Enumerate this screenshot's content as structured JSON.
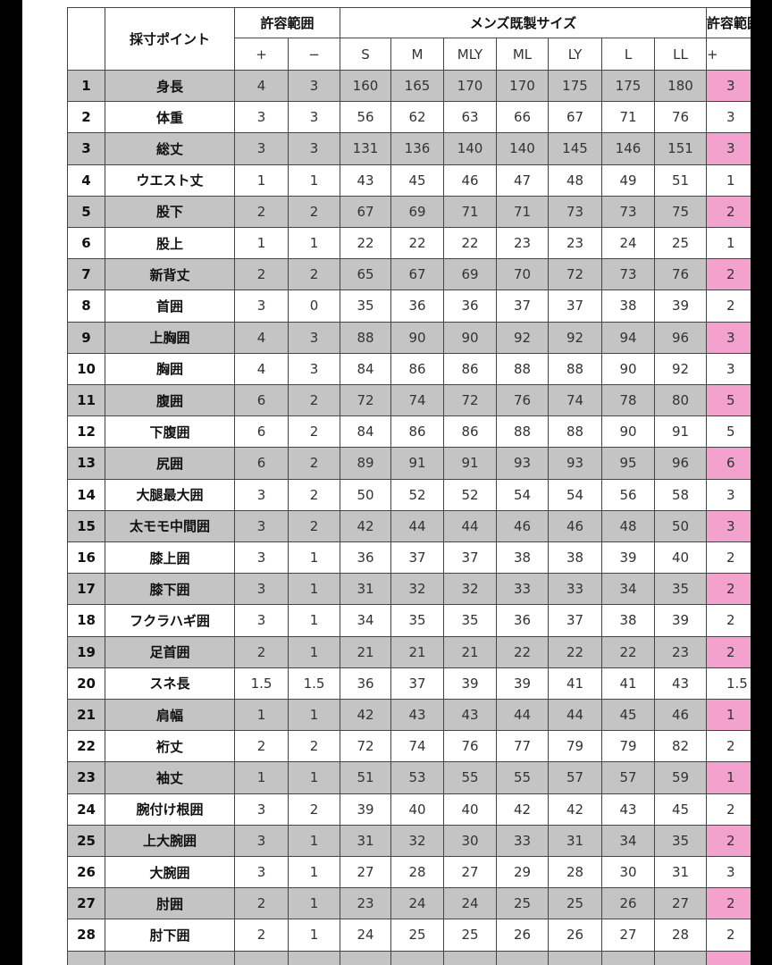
{
  "header": {
    "point": "採寸ポイント",
    "tolerance": "許容範囲",
    "sizes_title": "メンズ既製サイズ",
    "plus": "+",
    "minus": "−",
    "sizes": [
      "S",
      "M",
      "MLY",
      "ML",
      "LY",
      "L",
      "LL"
    ],
    "tolerance2": "許容範囲",
    "plus2": "+"
  },
  "rows": [
    {
      "no": 1,
      "name": "身長",
      "plus": 4,
      "minus": 3,
      "sizes": [
        160,
        165,
        170,
        170,
        175,
        175,
        180
      ],
      "plus2": 3
    },
    {
      "no": 2,
      "name": "体重",
      "plus": 3,
      "minus": 3,
      "sizes": [
        56,
        62,
        63,
        66,
        67,
        71,
        76
      ],
      "plus2": 3
    },
    {
      "no": 3,
      "name": "総丈",
      "plus": 3,
      "minus": 3,
      "sizes": [
        131,
        136,
        140,
        140,
        145,
        146,
        151
      ],
      "plus2": 3
    },
    {
      "no": 4,
      "name": "ウエスト丈",
      "plus": 1,
      "minus": 1,
      "sizes": [
        43,
        45,
        46,
        47,
        48,
        49,
        51
      ],
      "plus2": 1
    },
    {
      "no": 5,
      "name": "股下",
      "plus": 2,
      "minus": 2,
      "sizes": [
        67,
        69,
        71,
        71,
        73,
        73,
        75
      ],
      "plus2": 2
    },
    {
      "no": 6,
      "name": "股上",
      "plus": 1,
      "minus": 1,
      "sizes": [
        22,
        22,
        22,
        23,
        23,
        24,
        25
      ],
      "plus2": 1
    },
    {
      "no": 7,
      "name": "新背丈",
      "plus": 2,
      "minus": 2,
      "sizes": [
        65,
        67,
        69,
        70,
        72,
        73,
        76
      ],
      "plus2": 2
    },
    {
      "no": 8,
      "name": "首囲",
      "plus": 3,
      "minus": 0,
      "sizes": [
        35,
        36,
        36,
        37,
        37,
        38,
        39
      ],
      "plus2": 2
    },
    {
      "no": 9,
      "name": "上胸囲",
      "plus": 4,
      "minus": 3,
      "sizes": [
        88,
        90,
        90,
        92,
        92,
        94,
        96
      ],
      "plus2": 3
    },
    {
      "no": 10,
      "name": "胸囲",
      "plus": 4,
      "minus": 3,
      "sizes": [
        84,
        86,
        86,
        88,
        88,
        90,
        92
      ],
      "plus2": 3
    },
    {
      "no": 11,
      "name": "腹囲",
      "plus": 6,
      "minus": 2,
      "sizes": [
        72,
        74,
        72,
        76,
        74,
        78,
        80
      ],
      "plus2": 5
    },
    {
      "no": 12,
      "name": "下腹囲",
      "plus": 6,
      "minus": 2,
      "sizes": [
        84,
        86,
        86,
        88,
        88,
        90,
        91
      ],
      "plus2": 5
    },
    {
      "no": 13,
      "name": "尻囲",
      "plus": 6,
      "minus": 2,
      "sizes": [
        89,
        91,
        91,
        93,
        93,
        95,
        96
      ],
      "plus2": 6
    },
    {
      "no": 14,
      "name": "大腿最大囲",
      "plus": 3,
      "minus": 2,
      "sizes": [
        50,
        52,
        52,
        54,
        54,
        56,
        58
      ],
      "plus2": 3
    },
    {
      "no": 15,
      "name": "太モモ中間囲",
      "plus": 3,
      "minus": 2,
      "sizes": [
        42,
        44,
        44,
        46,
        46,
        48,
        50
      ],
      "plus2": 3
    },
    {
      "no": 16,
      "name": "膝上囲",
      "plus": 3,
      "minus": 1,
      "sizes": [
        36,
        37,
        37,
        38,
        38,
        39,
        40
      ],
      "plus2": 2
    },
    {
      "no": 17,
      "name": "膝下囲",
      "plus": 3,
      "minus": 1,
      "sizes": [
        31,
        32,
        32,
        33,
        33,
        34,
        35
      ],
      "plus2": 2
    },
    {
      "no": 18,
      "name": "フクラハギ囲",
      "plus": 3,
      "minus": 1,
      "sizes": [
        34,
        35,
        35,
        36,
        37,
        38,
        39
      ],
      "plus2": 2
    },
    {
      "no": 19,
      "name": "足首囲",
      "plus": 2,
      "minus": 1,
      "sizes": [
        21,
        21,
        21,
        22,
        22,
        22,
        23
      ],
      "plus2": 2
    },
    {
      "no": 20,
      "name": "スネ長",
      "plus": 1.5,
      "minus": 1.5,
      "sizes": [
        36,
        37,
        39,
        39,
        41,
        41,
        43
      ],
      "plus2": 1.5
    },
    {
      "no": 21,
      "name": "肩幅",
      "plus": 1,
      "minus": 1,
      "sizes": [
        42,
        43,
        43,
        44,
        44,
        45,
        46
      ],
      "plus2": 1
    },
    {
      "no": 22,
      "name": "裄丈",
      "plus": 2,
      "minus": 2,
      "sizes": [
        72,
        74,
        76,
        77,
        79,
        79,
        82
      ],
      "plus2": 2
    },
    {
      "no": 23,
      "name": "袖丈",
      "plus": 1,
      "minus": 1,
      "sizes": [
        51,
        53,
        55,
        55,
        57,
        57,
        59
      ],
      "plus2": 1
    },
    {
      "no": 24,
      "name": "腕付け根囲",
      "plus": 3,
      "minus": 2,
      "sizes": [
        39,
        40,
        40,
        42,
        42,
        43,
        45
      ],
      "plus2": 2
    },
    {
      "no": 25,
      "name": "上大腕囲",
      "plus": 3,
      "minus": 1,
      "sizes": [
        31,
        32,
        30,
        33,
        31,
        34,
        35
      ],
      "plus2": 2
    },
    {
      "no": 26,
      "name": "大腕囲",
      "plus": 3,
      "minus": 1,
      "sizes": [
        27,
        28,
        27,
        29,
        28,
        30,
        31
      ],
      "plus2": 3
    },
    {
      "no": 27,
      "name": "肘囲",
      "plus": 2,
      "minus": 1,
      "sizes": [
        23,
        24,
        24,
        25,
        25,
        26,
        27
      ],
      "plus2": 2
    },
    {
      "no": 28,
      "name": "肘下囲",
      "plus": 2,
      "minus": 1,
      "sizes": [
        24,
        25,
        25,
        26,
        26,
        27,
        28
      ],
      "plus2": 2
    }
  ]
}
